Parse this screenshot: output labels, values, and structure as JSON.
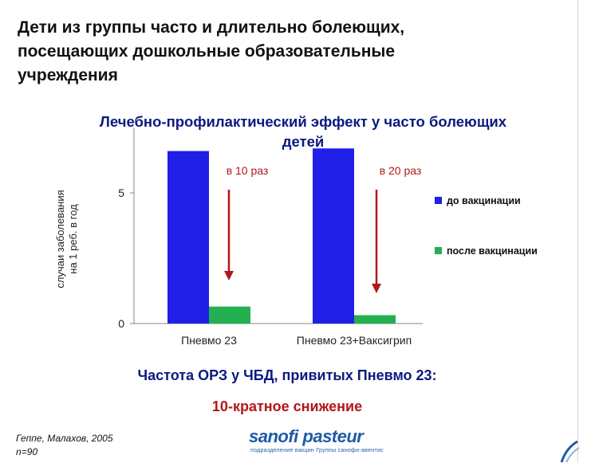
{
  "page": {
    "title_lines": [
      "Дети из группы часто и длительно болеющих,",
      "посещающих дошкольные образовательные",
      "учреждения"
    ],
    "chart_title_lines": [
      "Лечебно-профилактический эффект у часто болеющих",
      "детей"
    ],
    "caption": "Частота ОРЗ у ЧБД, привитых Пневмо 23:",
    "subcaption": "10-кратное снижение",
    "source_lines": [
      "Геппе, Малахов, 2005",
      "n=90"
    ],
    "logo": "sanofi pasteur",
    "logo_tagline": "подразделение вакцин Группы санофи-авентис"
  },
  "colors": {
    "before": "#1f1fe6",
    "after": "#22b050",
    "arrow": "#b01818",
    "axis": "#888888",
    "title_blue": "#0b1a80"
  },
  "chart_data": {
    "type": "bar",
    "categories": [
      "Пневмо 23",
      "Пневмо 23+Ваксигрип"
    ],
    "series": [
      {
        "name": "до вакцинации",
        "values": [
          6.6,
          6.7
        ]
      },
      {
        "name": "после вакцинации",
        "values": [
          0.65,
          0.32
        ]
      }
    ],
    "ylabel_lines": [
      "случаи заболевания",
      "на 1 реб. в год"
    ],
    "ylim": [
      0,
      7
    ],
    "yticks": [
      0,
      5
    ],
    "annotations": [
      "в 10 раз",
      "в 20 раз"
    ],
    "legend_position": "right",
    "grid": false
  }
}
